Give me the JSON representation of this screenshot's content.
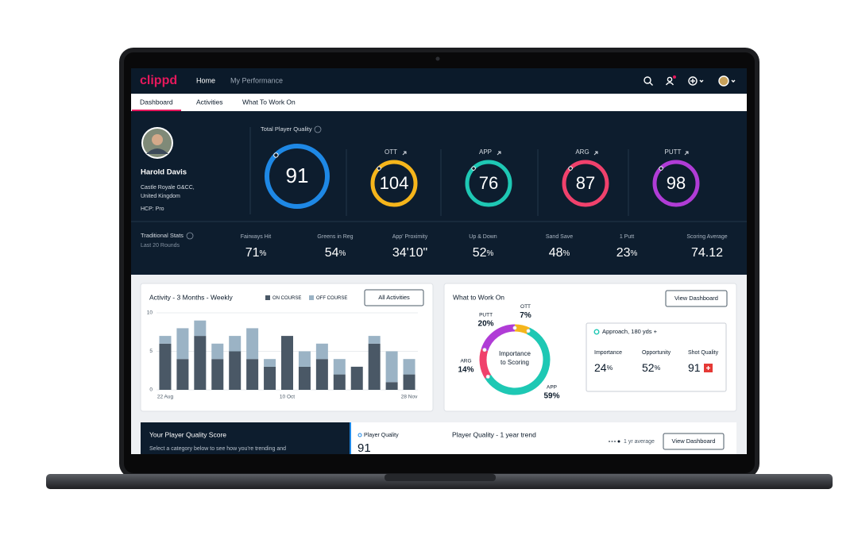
{
  "nav": {
    "logo": "clippd",
    "links": [
      "Home",
      "My Performance"
    ]
  },
  "tabs": [
    "Dashboard",
    "Activities",
    "What To Work On"
  ],
  "profile": {
    "name": "Harold Davis",
    "club": "Castle Royale G&CC,",
    "country": "United Kingdom",
    "handicap": "HCP: Pro"
  },
  "quality": {
    "title": "Total Player Quality",
    "total": 91,
    "categories": [
      {
        "name": "OTT",
        "score": 104,
        "color": "#f5b51b"
      },
      {
        "name": "APP",
        "score": 76,
        "color": "#1ec8b4"
      },
      {
        "name": "ARG",
        "score": 87,
        "color": "#f0416c"
      },
      {
        "name": "PUTT",
        "score": 98,
        "color": "#b03cd6"
      }
    ]
  },
  "traditional_stats": {
    "title": "Traditional Stats",
    "subtitle": "Last 20 Rounds",
    "items": [
      {
        "label": "Fairways Hit",
        "value": "71%"
      },
      {
        "label": "Greens in Reg",
        "value": "54%"
      },
      {
        "label": "App' Proximity",
        "value": "34'10\""
      },
      {
        "label": "Up & Down",
        "value": "52%"
      },
      {
        "label": "Sand Save",
        "value": "48%"
      },
      {
        "label": "1 Putt",
        "value": "23%"
      },
      {
        "label": "Scoring Average",
        "value": "74.12"
      }
    ]
  },
  "activity": {
    "title": "Activity - 3 Months - Weekly",
    "button": "All Activities",
    "chart_data": {
      "type": "stacked-bar",
      "categories": [
        "22 Aug",
        null,
        null,
        null,
        null,
        null,
        null,
        "10 Oct",
        null,
        null,
        null,
        null,
        null,
        null,
        "28 Nov"
      ],
      "series": [
        {
          "name": "ON COURSE",
          "color": "#4a5866",
          "values": [
            6,
            4,
            7,
            4,
            5,
            4,
            3,
            7,
            3,
            4,
            2,
            3,
            6,
            1,
            2
          ]
        },
        {
          "name": "OFF COURSE",
          "color": "#9bb3c5",
          "values": [
            1,
            4,
            2,
            2,
            2,
            4,
            1,
            0,
            2,
            2,
            2,
            0,
            1,
            4,
            2
          ]
        }
      ],
      "ylim": [
        0,
        10
      ],
      "yticks": [
        0,
        5,
        10
      ],
      "grid": true
    }
  },
  "work_on": {
    "title": "What to Work On",
    "button": "View Dashboard",
    "center_label": [
      "Importance",
      "to Scoring"
    ],
    "chart_data": {
      "type": "donut",
      "categories": [
        "OTT",
        "APP",
        "ARG",
        "PUTT"
      ],
      "values": [
        7,
        59,
        14,
        20
      ],
      "value_labels": [
        "7%",
        "59%",
        "14%",
        "20%"
      ],
      "colors": [
        "#f5b51b",
        "#1ec8b4",
        "#f0416c",
        "#b03cd6"
      ]
    },
    "focus": {
      "title": "Approach, 180 yds +",
      "metrics": [
        {
          "label": "Importance",
          "value": "24%"
        },
        {
          "label": "Opportunity",
          "value": "52%"
        },
        {
          "label": "Shot Quality",
          "value": "91"
        }
      ]
    }
  },
  "player_quality_score": {
    "title": "Your Player Quality Score",
    "text": "Select a category below to see how you’re trending and"
  },
  "trend": {
    "label": "Player Quality",
    "value": 91,
    "title": "Player Quality - 1 year trend",
    "legend": "1 yr average",
    "button": "View Dashboard"
  }
}
